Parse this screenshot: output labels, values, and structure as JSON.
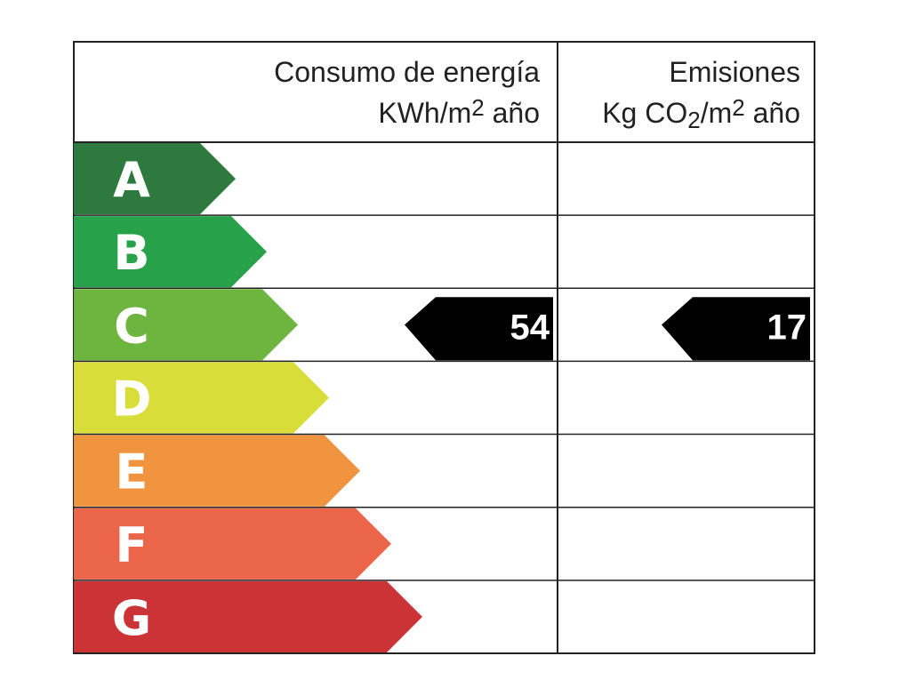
{
  "columns": [
    {
      "title": "Consumo de energía",
      "unit": [
        "KWh/m",
        "2",
        " año"
      ]
    },
    {
      "title": "Emisiones",
      "unit": [
        "Kg CO",
        "2",
        "/m",
        "2",
        " año"
      ]
    }
  ],
  "ratings": [
    {
      "letter": "A",
      "color": "#2e7a3e"
    },
    {
      "letter": "B",
      "color": "#27a24a"
    },
    {
      "letter": "C",
      "color": "#6db53f",
      "energy": 54,
      "emissions": 17
    },
    {
      "letter": "D",
      "color": "#d8dd3a"
    },
    {
      "letter": "E",
      "color": "#f0943f"
    },
    {
      "letter": "F",
      "color": "#ea6549"
    },
    {
      "letter": "G",
      "color": "#cc3336"
    }
  ]
}
